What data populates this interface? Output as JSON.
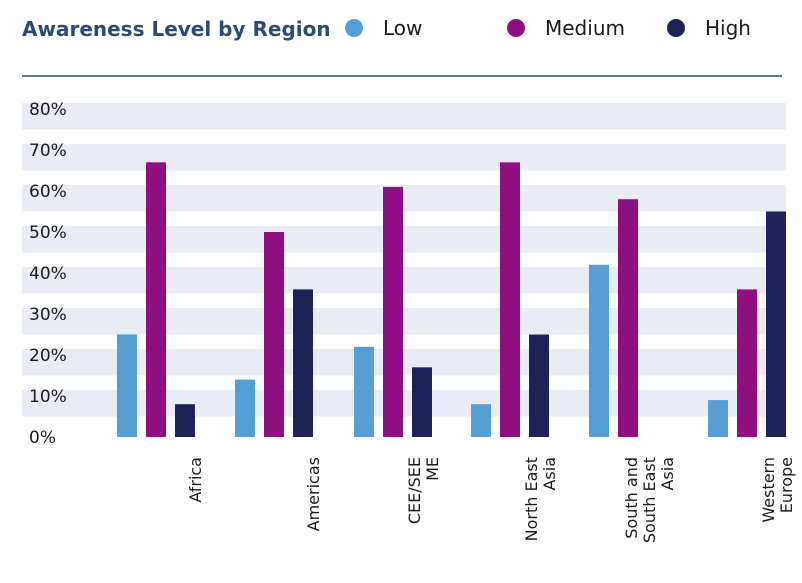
{
  "chart_data": {
    "type": "bar",
    "title": "Awareness Level by Region",
    "xlabel": "",
    "ylabel": "",
    "ylim": [
      0,
      80
    ],
    "y_ticks": [
      "80%",
      "70%",
      "60%",
      "50%",
      "40%",
      "30%",
      "20%",
      "10%",
      "0%"
    ],
    "legend_position": "top",
    "categories": [
      [
        "Africa"
      ],
      [
        "Americas"
      ],
      [
        "CEE/SEE",
        "ME"
      ],
      [
        "North East",
        "Asia"
      ],
      [
        "South and",
        "South East",
        "Asia"
      ],
      [
        "Western",
        "Europe"
      ]
    ],
    "series": [
      {
        "name": "Low",
        "color": "#559fd4",
        "values": [
          25,
          14,
          22,
          8,
          42,
          9
        ]
      },
      {
        "name": "Medium",
        "color": "#8d0f80",
        "values": [
          67,
          50,
          61,
          67,
          58,
          36
        ]
      },
      {
        "name": "High",
        "color": "#1e2257",
        "values": [
          8,
          36,
          17,
          25,
          0,
          55
        ]
      }
    ],
    "colors": {
      "title": "#2c4a78",
      "divider": "#2f4f6f",
      "band": "#e9ecf5"
    }
  }
}
